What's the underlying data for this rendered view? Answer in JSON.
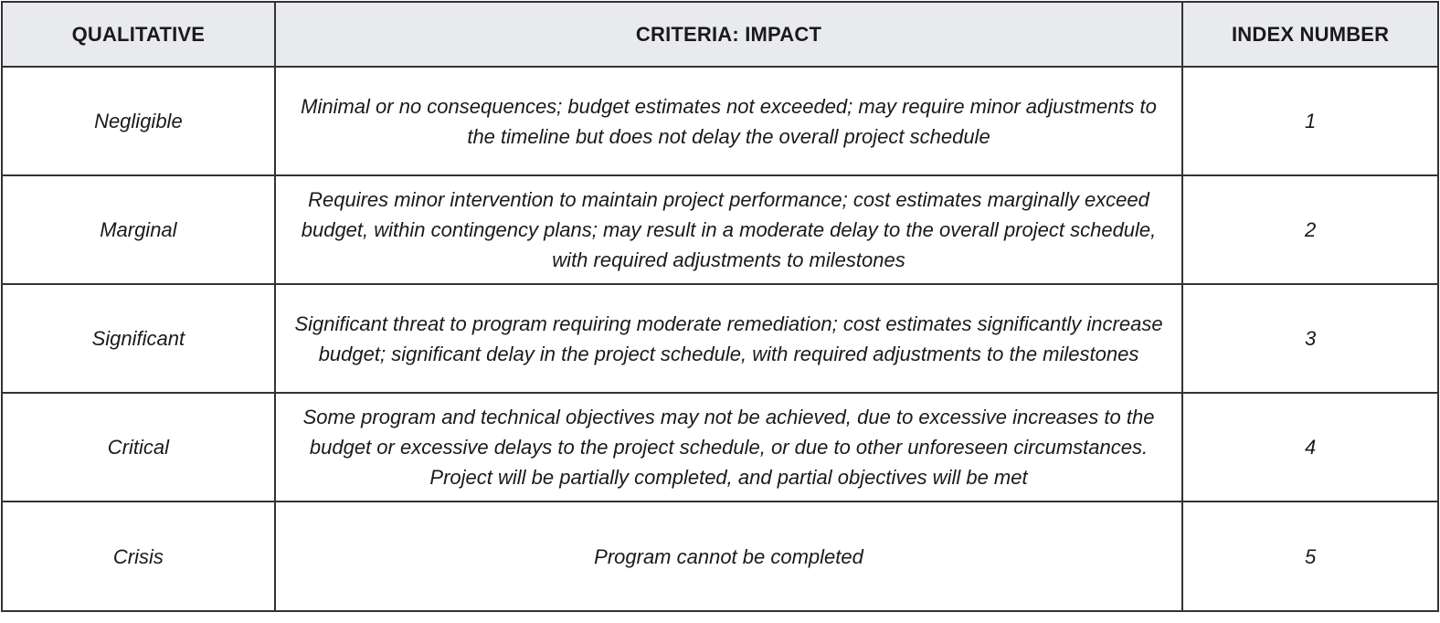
{
  "table": {
    "headers": [
      "QUALITATIVE",
      "CRITERIA: IMPACT",
      "INDEX NUMBER"
    ],
    "rows": [
      {
        "qualitative": "Negligible",
        "criteria": "Minimal or no consequences; budget estimates not exceeded; may require minor adjustments to the timeline but does not delay the overall project schedule",
        "index": "1"
      },
      {
        "qualitative": "Marginal",
        "criteria": "Requires minor intervention to maintain project performance; cost estimates marginally exceed budget, within contingency plans; may result in a moderate delay to the overall project schedule, with required adjustments to milestones",
        "index": "2"
      },
      {
        "qualitative": "Significant",
        "criteria": "Significant threat to program requiring moderate remediation; cost estimates significantly increase budget; significant delay in the project schedule, with required adjustments to the milestones",
        "index": "3"
      },
      {
        "qualitative": "Critical",
        "criteria": "Some program and technical objectives may not be achieved, due to excessive increases to the budget or excessive delays to the project schedule, or due to other unforeseen circumstances. Project will be partially completed, and partial objectives will be met",
        "index": "4"
      },
      {
        "qualitative": "Crisis",
        "criteria": "Program cannot be completed",
        "index": "5"
      }
    ]
  }
}
